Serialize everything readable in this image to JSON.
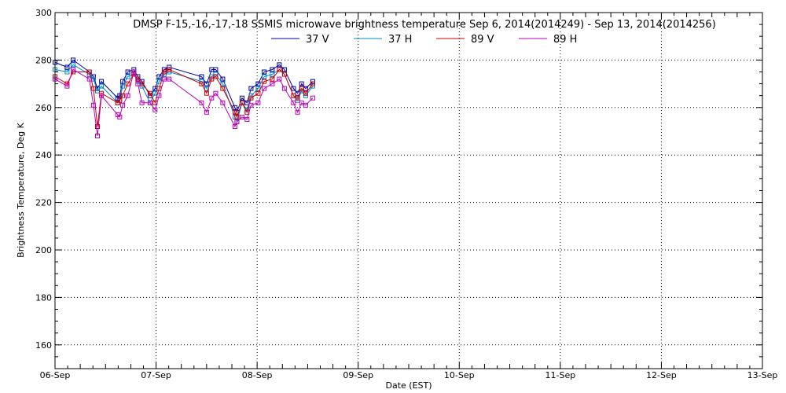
{
  "chart_data": {
    "type": "line",
    "title": "DMSP F-15,-16,-17,-18 SSMIS microwave brightness temperature Sep  6, 2014(2014249) - Sep 13, 2014(2014256)",
    "xlabel": "Date (EST)",
    "ylabel": "Brightness Temperature, Deg K",
    "x_unit": "days",
    "xlim": [
      "06-Sep",
      "13-Sep"
    ],
    "ylim": [
      150,
      300
    ],
    "x_tick_labels": [
      "06-Sep",
      "07-Sep",
      "08-Sep",
      "09-Sep",
      "10-Sep",
      "11-Sep",
      "12-Sep",
      "13-Sep"
    ],
    "y_ticks": [
      160,
      180,
      200,
      220,
      240,
      260,
      280,
      300
    ],
    "grid": "dotted",
    "legend_position": "top",
    "series": [
      {
        "name": "37 V",
        "color": "#0000aa",
        "x": [
          0.0,
          0.12,
          0.18,
          0.34,
          0.38,
          0.42,
          0.46,
          0.62,
          0.64,
          0.67,
          0.72,
          0.78,
          0.82,
          0.86,
          0.94,
          0.99,
          1.03,
          1.08,
          1.13,
          1.45,
          1.5,
          1.55,
          1.59,
          1.66,
          1.78,
          1.8,
          1.85,
          1.9,
          1.94,
          2.01,
          2.07,
          2.15,
          2.22,
          2.27,
          2.36,
          2.4,
          2.44,
          2.48,
          2.55
        ],
        "y": [
          279,
          277,
          280,
          275,
          273,
          268,
          271,
          264,
          265,
          271,
          275,
          276,
          273,
          271,
          265,
          268,
          273,
          276,
          277,
          273,
          270,
          276,
          276,
          272,
          260,
          258,
          264,
          262,
          268,
          270,
          275,
          276,
          278,
          276,
          268,
          266,
          270,
          268,
          271
        ]
      },
      {
        "name": "37 H",
        "color": "#0088cc",
        "x": [
          0.0,
          0.12,
          0.18,
          0.34,
          0.38,
          0.42,
          0.46,
          0.62,
          0.64,
          0.67,
          0.72,
          0.78,
          0.82,
          0.86,
          0.94,
          0.99,
          1.03,
          1.08,
          1.13,
          1.45,
          1.5,
          1.55,
          1.59,
          1.66,
          1.78,
          1.8,
          1.85,
          1.9,
          1.94,
          2.01,
          2.07,
          2.15,
          2.22,
          2.27,
          2.36,
          2.4,
          2.44,
          2.48,
          2.55
        ],
        "y": [
          276,
          275,
          278,
          274,
          272,
          267,
          269,
          262,
          263,
          269,
          273,
          274,
          271,
          269,
          262,
          266,
          271,
          274,
          275,
          271,
          268,
          273,
          274,
          270,
          256,
          254,
          262,
          259,
          265,
          268,
          273,
          274,
          276,
          274,
          265,
          263,
          267,
          265,
          269
        ]
      },
      {
        "name": "89 V",
        "color": "#cc0000",
        "x": [
          0.0,
          0.12,
          0.18,
          0.34,
          0.38,
          0.42,
          0.46,
          0.62,
          0.64,
          0.67,
          0.72,
          0.78,
          0.82,
          0.86,
          0.94,
          0.99,
          1.03,
          1.08,
          1.13,
          1.45,
          1.5,
          1.55,
          1.59,
          1.66,
          1.78,
          1.8,
          1.85,
          1.9,
          1.94,
          2.01,
          2.07,
          2.15,
          2.22,
          2.27,
          2.36,
          2.4,
          2.44,
          2.48,
          2.55
        ],
        "y": [
          273,
          270,
          275,
          275,
          268,
          252,
          266,
          262,
          263,
          265,
          270,
          274,
          272,
          270,
          266,
          262,
          268,
          275,
          276,
          270,
          266,
          272,
          273,
          268,
          258,
          256,
          262,
          258,
          264,
          266,
          271,
          272,
          276,
          274,
          265,
          264,
          268,
          266,
          270
        ]
      },
      {
        "name": "89 H",
        "color": "#bb00bb",
        "x": [
          0.0,
          0.12,
          0.18,
          0.34,
          0.38,
          0.42,
          0.46,
          0.62,
          0.64,
          0.67,
          0.72,
          0.78,
          0.82,
          0.86,
          0.94,
          0.99,
          1.03,
          1.08,
          1.13,
          1.45,
          1.5,
          1.55,
          1.59,
          1.66,
          1.78,
          1.8,
          1.85,
          1.9,
          1.94,
          2.01,
          2.07,
          2.15,
          2.22,
          2.27,
          2.36,
          2.4,
          2.44,
          2.48,
          2.55
        ],
        "y": [
          272,
          269,
          276,
          272,
          261,
          248,
          265,
          257,
          256,
          261,
          265,
          275,
          270,
          262,
          262,
          259,
          265,
          272,
          272,
          262,
          258,
          264,
          266,
          262,
          252,
          254,
          256,
          255,
          261,
          262,
          268,
          270,
          272,
          268,
          262,
          258,
          262,
          261,
          264
        ]
      }
    ]
  }
}
